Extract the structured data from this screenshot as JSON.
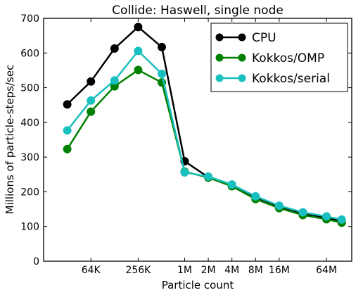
{
  "chart_data": {
    "type": "line",
    "title": "Collide: Haswell, single node",
    "xlabel": "Particle count",
    "ylabel": "Millions of particle-steps/sec",
    "x_scale": "log2",
    "xlim": [
      16000,
      134217728
    ],
    "ylim": [
      0,
      700
    ],
    "x": [
      32000,
      64000,
      128000,
      256000,
      512000,
      1000000,
      2000000,
      4000000,
      8000000,
      16000000,
      32000000,
      64000000,
      100000000
    ],
    "x_ticks": [
      {
        "value": 64000,
        "label": "64K"
      },
      {
        "value": 256000,
        "label": "256K"
      },
      {
        "value": 1000000,
        "label": "1M"
      },
      {
        "value": 2000000,
        "label": "2M"
      },
      {
        "value": 4000000,
        "label": "4M"
      },
      {
        "value": 8000000,
        "label": "8M"
      },
      {
        "value": 16000000,
        "label": "16M"
      },
      {
        "value": 64000000,
        "label": "64M"
      }
    ],
    "y_ticks": [
      0,
      100,
      200,
      300,
      400,
      500,
      600,
      700
    ],
    "legend_position": "top-right",
    "grid": false,
    "series": [
      {
        "name": "CPU",
        "color": "#000000",
        "values": [
          452,
          518,
          613,
          675,
          617,
          288,
          242,
          218,
          185,
          157,
          137,
          125,
          115
        ]
      },
      {
        "name": "Kokkos/OMP",
        "color": "#008000",
        "values": [
          323,
          431,
          504,
          551,
          515,
          258,
          241,
          216,
          179,
          153,
          133,
          121,
          111
        ]
      },
      {
        "name": "Kokkos/serial",
        "color": "#1ABFBF",
        "values": [
          377,
          463,
          521,
          606,
          540,
          256,
          244,
          221,
          187,
          160,
          141,
          129,
          120
        ]
      }
    ]
  }
}
